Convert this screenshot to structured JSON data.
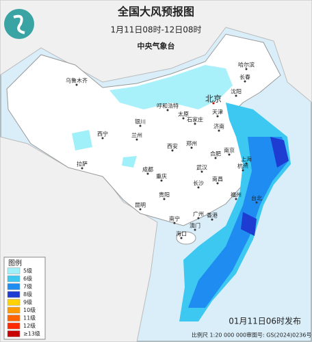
{
  "header": {
    "title": "全国大风预报图",
    "subtitle": "1月11日08时-12日08时",
    "issuer": "中央气象台"
  },
  "cities": [
    "乌鲁木齐",
    "哈尔滨",
    "长春",
    "沈阳",
    "呼和浩特",
    "北京",
    "天津",
    "石家庄",
    "太原",
    "银川",
    "西宁",
    "兰州",
    "济南",
    "郑州",
    "西安",
    "合肥",
    "南京",
    "上海",
    "杭州",
    "武汉",
    "成都",
    "重庆",
    "拉萨",
    "长沙",
    "南昌",
    "贵阳",
    "福州",
    "台北",
    "昆明",
    "南宁",
    "广州",
    "香港",
    "澳门",
    "海口"
  ],
  "legend": {
    "title": "图例",
    "items": [
      {
        "label": "5级",
        "color": "#a0f0fa"
      },
      {
        "label": "6级",
        "color": "#3cc8f0"
      },
      {
        "label": "7级",
        "color": "#1e8cf0"
      },
      {
        "label": "8级",
        "color": "#1e3cd2"
      },
      {
        "label": "9级",
        "color": "#ffd200"
      },
      {
        "label": "10级",
        "color": "#ff9a00"
      },
      {
        "label": "11级",
        "color": "#ff6400"
      },
      {
        "label": "12级",
        "color": "#ff2a00"
      },
      {
        "label": "≥13级",
        "color": "#c80000"
      }
    ]
  },
  "footer": {
    "issued": "01月11日06时发布",
    "scale": "比例尺 1:20 000 000",
    "review": "审图号: GS(2024)0236号"
  }
}
